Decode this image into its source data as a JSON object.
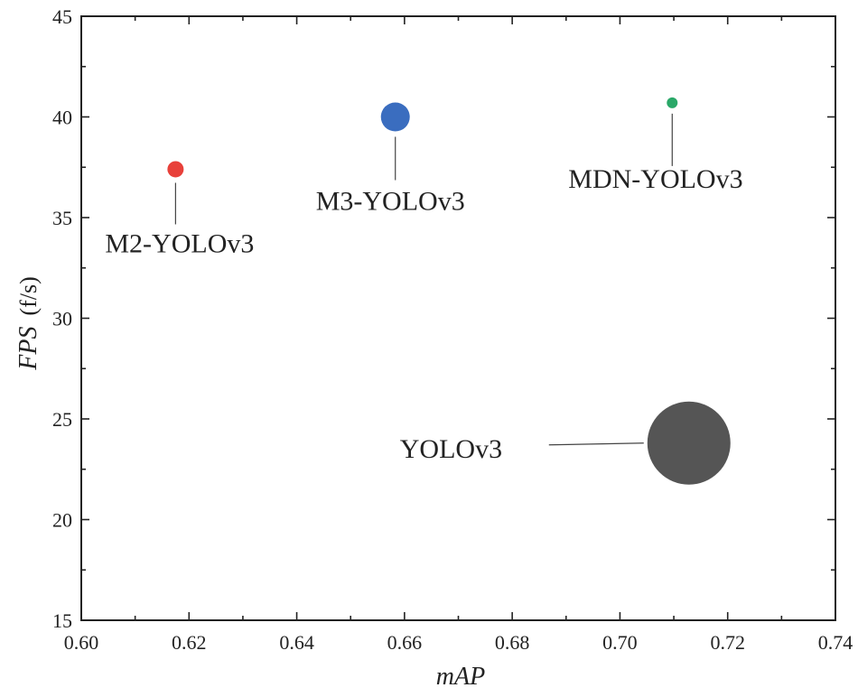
{
  "chart_data": {
    "type": "scatter",
    "title": "",
    "xlabel": "mAP",
    "ylabel": "FPS",
    "ylabel_unit": "(f/s)",
    "xlim": [
      0.6,
      0.74
    ],
    "ylim": [
      15,
      45
    ],
    "x_ticks": [
      0.6,
      0.62,
      0.64,
      0.66,
      0.68,
      0.7,
      0.72,
      0.74
    ],
    "x_tick_labels": [
      "0.60",
      "0.62",
      "0.64",
      "0.66",
      "0.68",
      "0.70",
      "0.72",
      "0.74"
    ],
    "y_ticks": [
      15,
      20,
      25,
      30,
      35,
      40,
      45
    ],
    "y_tick_labels": [
      "15",
      "20",
      "25",
      "30",
      "35",
      "40",
      "45"
    ],
    "grid": false,
    "points": [
      {
        "name": "M2-YOLOv3",
        "x": 0.6175,
        "y": 37.4,
        "size": 9,
        "color": "#e8403a"
      },
      {
        "name": "M3-YOLOv3",
        "x": 0.6583,
        "y": 40.0,
        "size": 16,
        "color": "#3a6dbf"
      },
      {
        "name": "MDN-YOLOv3",
        "x": 0.7097,
        "y": 40.7,
        "size": 6,
        "color": "#2aa868"
      },
      {
        "name": "YOLOv3",
        "x": 0.7128,
        "y": 23.8,
        "size": 46,
        "color": "#555555"
      }
    ]
  }
}
